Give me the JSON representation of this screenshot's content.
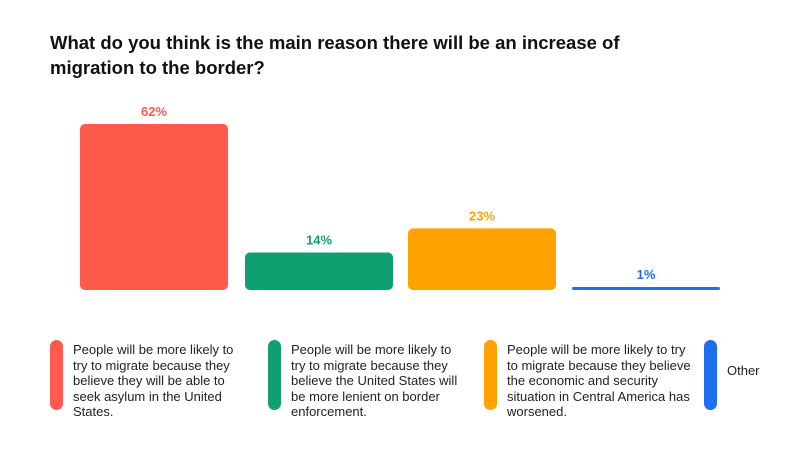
{
  "title": "What do you think is the main reason there will be an increase of migration to the border?",
  "chart_data": {
    "type": "bar",
    "categories": [
      "People will be more likely to try to migrate because they believe they will be able to seek asylum in the United States.",
      "People will be more likely to try to migrate because they believe the United States will be more lenient on border enforcement.",
      "People will be more likely to try to migrate because they believe the economic and security situation in Central America has worsened.",
      "Other"
    ],
    "values": [
      62,
      14,
      23,
      1
    ],
    "value_labels": [
      "62%",
      "14%",
      "23%",
      "1%"
    ],
    "colors": [
      "#FF5A4B",
      "#0FA072",
      "#FFA200",
      "#1E6EF0"
    ],
    "ylim": [
      0,
      62
    ],
    "grid": false,
    "legend_position": "bottom"
  }
}
